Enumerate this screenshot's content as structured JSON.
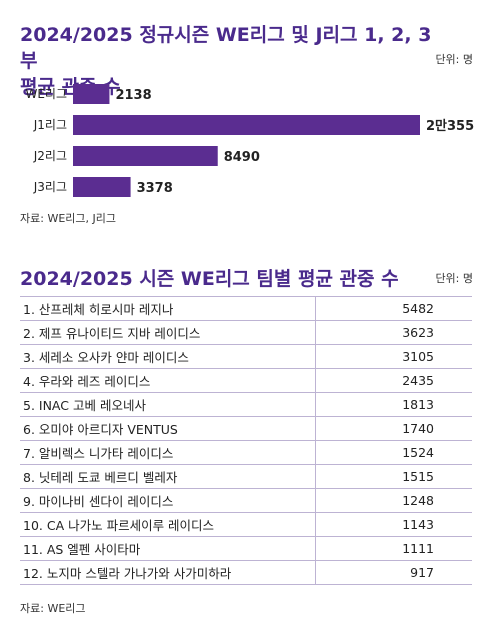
{
  "title1_line1": "2024/2025 정규시즌 WE리그 및 J리그 1, 2, 3부",
  "title1_line2": "평균 관중 수",
  "unit1": "단위: 명",
  "chart_data": {
    "type": "bar",
    "orientation": "horizontal",
    "categories": [
      "WE리그",
      "J1리그",
      "J2리그",
      "J3리그"
    ],
    "values": [
      2138,
      20355,
      8490,
      3378
    ],
    "value_labels": [
      "2138",
      "2만355",
      "8490",
      "3378"
    ],
    "bar_color": "#5b2d91",
    "xlim": [
      0,
      20355
    ]
  },
  "source1": "자료: WE리그, J리그",
  "title2": "2024/2025 시즌 WE리그 팀별 평균 관중 수",
  "unit2": "단위: 명",
  "teams": [
    {
      "name": "1. 산프레체 히로시마 레지나",
      "value": "5482"
    },
    {
      "name": "2. 제프 유나이티드 지바 레이디스",
      "value": "3623"
    },
    {
      "name": "3. 세레소 오사카 얀마 레이디스",
      "value": "3105"
    },
    {
      "name": "4. 우라와 레즈 레이디스",
      "value": "2435"
    },
    {
      "name": "5. INAC 고베 레오네사",
      "value": "1813"
    },
    {
      "name": "6. 오미야 아르디자 VENTUS",
      "value": "1740"
    },
    {
      "name": "7. 알비렉스 니가타 레이디스",
      "value": "1524"
    },
    {
      "name": "8. 닛테레 도쿄 베르디 벨레자",
      "value": "1515"
    },
    {
      "name": "9. 마이나비 센다이 레이디스",
      "value": "1248"
    },
    {
      "name": "10. CA 나가노 파르세이루 레이디스",
      "value": "1143"
    },
    {
      "name": "11. AS 엘펜 사이타마",
      "value": "1111"
    },
    {
      "name": "12. 노지마 스텔라 가나가와 사가미하라",
      "value": "917"
    }
  ],
  "source2": "자료: WE리그"
}
